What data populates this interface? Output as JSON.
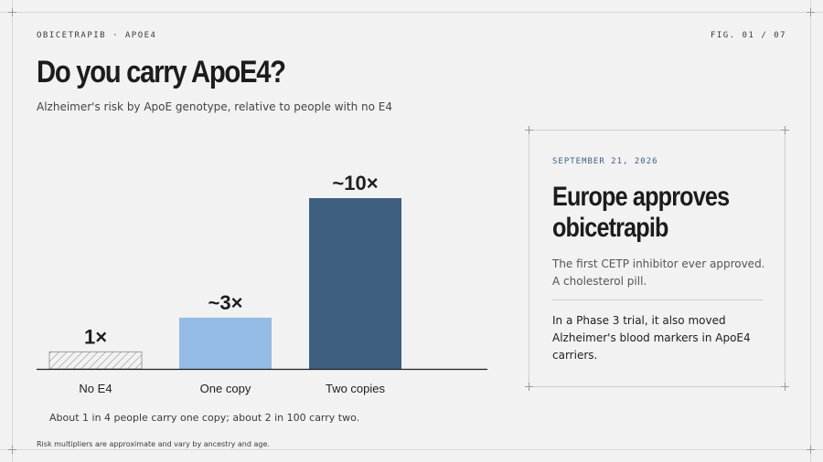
{
  "header": {
    "kicker": "OBICETRAPIB · APOE4",
    "figure_number": "FIG. 01 / 07"
  },
  "title": "Do you carry ApoE4?",
  "subtitle": "Alzheimer's risk by ApoE genotype, relative to people with no E4",
  "chart_data": {
    "type": "bar",
    "title": "Do you carry ApoE4?",
    "subtitle": "Alzheimer's risk by ApoE genotype, relative to people with no E4",
    "categories": [
      "No E4",
      "One copy",
      "Two copies"
    ],
    "values": [
      1,
      3,
      10
    ],
    "data_labels": [
      "1×",
      "~3×",
      "~10×"
    ],
    "colors": [
      "#f2f2f2",
      "#94bbe3",
      "#3f5f80"
    ],
    "hatched": [
      true,
      false,
      false
    ],
    "xlabel": "",
    "ylabel": "",
    "ylim": [
      0,
      10
    ],
    "grid": false,
    "legend": "none"
  },
  "footnote": "About 1 in 4 people carry one copy; about 2 in 100 carry two.",
  "disclaimer": "Risk multipliers are approximate and vary by ancestry and age.",
  "card": {
    "date": "SEPTEMBER 21, 2026",
    "heading_line1": "Europe approves",
    "heading_line2": "obicetrapib",
    "lead": "The first CETP inhibitor ever approved. A cholesterol pill.",
    "body": "In a Phase 3 trial, it also moved Alzheimer's blood markers in ApoE4 carriers."
  }
}
